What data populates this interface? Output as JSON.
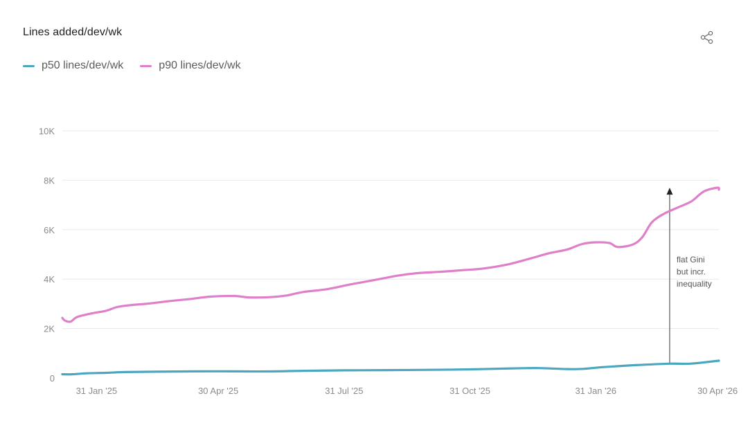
{
  "header": {
    "share_icon": "share-icon"
  },
  "colors": {
    "p50": "#4ba6bf",
    "p90": "#df7fc9",
    "grid": "#e9e9e9",
    "arrow": "#555555"
  },
  "chart_data": {
    "type": "line",
    "title": "Lines added/dev/wk",
    "xlabel": "",
    "ylabel": "",
    "ylim": [
      0,
      10000
    ],
    "yticks": [
      0,
      2000,
      4000,
      6000,
      8000,
      10000
    ],
    "ytick_labels": [
      "0",
      "2K",
      "4K",
      "6K",
      "8K",
      "10K"
    ],
    "xlim": [
      "2025-01-06",
      "2026-05-01"
    ],
    "xticks": [
      "2025-01-31",
      "2025-04-30",
      "2025-07-31",
      "2025-10-31",
      "2026-01-31",
      "2026-04-30"
    ],
    "xtick_labels": [
      "31 Jan '25",
      "30 Apr '25",
      "31 Jul '25",
      "31 Oct '25",
      "31 Jan '26",
      "30 Apr '26"
    ],
    "grid": true,
    "legend": "top-left",
    "series": [
      {
        "name": "p50 lines/dev/wk",
        "color": "#4ba6bf",
        "points": [
          [
            "2025-01-06",
            150
          ],
          [
            "2025-01-13",
            150
          ],
          [
            "2025-01-24",
            190
          ],
          [
            "2025-02-07",
            210
          ],
          [
            "2025-02-21",
            240
          ],
          [
            "2025-03-15",
            255
          ],
          [
            "2025-04-15",
            270
          ],
          [
            "2025-05-10",
            270
          ],
          [
            "2025-06-05",
            265
          ],
          [
            "2025-07-01",
            290
          ],
          [
            "2025-08-01",
            310
          ],
          [
            "2025-09-01",
            320
          ],
          [
            "2025-10-01",
            330
          ],
          [
            "2025-11-01",
            350
          ],
          [
            "2025-12-01",
            390
          ],
          [
            "2025-12-21",
            400
          ],
          [
            "2026-01-10",
            360
          ],
          [
            "2026-01-22",
            370
          ],
          [
            "2026-02-05",
            440
          ],
          [
            "2026-03-01",
            520
          ],
          [
            "2026-03-26",
            580
          ],
          [
            "2026-04-10",
            580
          ],
          [
            "2026-05-01",
            700
          ]
        ]
      },
      {
        "name": "p90 lines/dev/wk",
        "color": "#df7fc9",
        "points": [
          [
            "2025-01-06",
            2430
          ],
          [
            "2025-01-08",
            2320
          ],
          [
            "2025-01-12",
            2280
          ],
          [
            "2025-01-17",
            2470
          ],
          [
            "2025-01-28",
            2620
          ],
          [
            "2025-02-07",
            2720
          ],
          [
            "2025-02-15",
            2870
          ],
          [
            "2025-02-25",
            2950
          ],
          [
            "2025-03-10",
            3010
          ],
          [
            "2025-03-25",
            3110
          ],
          [
            "2025-04-10",
            3200
          ],
          [
            "2025-04-24",
            3290
          ],
          [
            "2025-05-12",
            3320
          ],
          [
            "2025-05-22",
            3260
          ],
          [
            "2025-06-06",
            3270
          ],
          [
            "2025-06-18",
            3330
          ],
          [
            "2025-07-01",
            3480
          ],
          [
            "2025-07-18",
            3590
          ],
          [
            "2025-08-05",
            3790
          ],
          [
            "2025-08-22",
            3960
          ],
          [
            "2025-09-08",
            4140
          ],
          [
            "2025-09-22",
            4240
          ],
          [
            "2025-10-10",
            4300
          ],
          [
            "2025-10-25",
            4360
          ],
          [
            "2025-11-10",
            4430
          ],
          [
            "2025-11-28",
            4600
          ],
          [
            "2025-12-15",
            4850
          ],
          [
            "2025-12-28",
            5050
          ],
          [
            "2026-01-10",
            5200
          ],
          [
            "2026-01-21",
            5420
          ],
          [
            "2026-01-31",
            5490
          ],
          [
            "2026-02-10",
            5460
          ],
          [
            "2026-02-16",
            5300
          ],
          [
            "2026-02-27",
            5400
          ],
          [
            "2026-03-06",
            5700
          ],
          [
            "2026-03-13",
            6300
          ],
          [
            "2026-03-22",
            6650
          ],
          [
            "2026-04-01",
            6900
          ],
          [
            "2026-04-11",
            7150
          ],
          [
            "2026-04-20",
            7550
          ],
          [
            "2026-04-30",
            7700
          ],
          [
            "2026-05-01",
            7620
          ]
        ]
      }
    ],
    "annotations": [
      {
        "type": "arrow",
        "x": "2026-03-26",
        "y_from": 580,
        "y_to": 7700,
        "text_lines": [
          "flat Gini",
          "but incr.",
          "inequality"
        ]
      }
    ]
  }
}
